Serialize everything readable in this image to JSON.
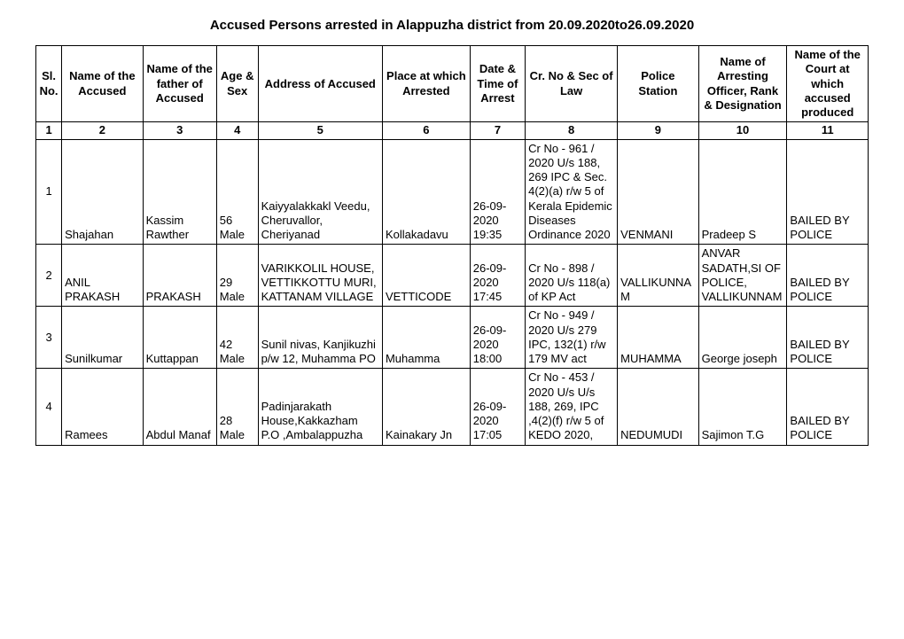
{
  "title": "Accused Persons arrested in   Alappuzha  district from   20.09.2020to26.09.2020",
  "headers": {
    "sl": "Sl. No.",
    "name": "Name of the Accused",
    "father": "Name of the father of Accused",
    "age": "Age & Sex",
    "addr": "Address of Accused",
    "place": "Place at which Arrested",
    "date": "Date & Time of Arrest",
    "cr": "Cr. No & Sec of Law",
    "police": "Police Station",
    "officer": "Name of Arresting Officer, Rank & Designation",
    "court": "Name of the Court at which accused produced"
  },
  "colnums": [
    "1",
    "2",
    "3",
    "4",
    "5",
    "6",
    "7",
    "8",
    "9",
    "10",
    "11"
  ],
  "rows": [
    {
      "sl": "1",
      "name": "Shajahan",
      "father": "Kassim Rawther",
      "age": "56 Male",
      "addr": "Kaiyyalakkakl Veedu, Cheruvallor, Cheriyanad",
      "place": "Kollakadavu",
      "date": "26-09-2020 19:35",
      "cr": "Cr No - 961 / 2020 U/s 188, 269 IPC & Sec. 4(2)(a) r/w 5 of Kerala Epidemic Diseases Ordinance 2020",
      "police": "VENMANI",
      "officer": "Pradeep S",
      "court": "BAILED BY POLICE"
    },
    {
      "sl": "2",
      "name": "ANIL PRAKASH",
      "father": "PRAKASH",
      "age": "29 Male",
      "addr": "VARIKKOLIL HOUSE, VETTIKKOTTU MURI, KATTANAM VILLAGE",
      "place": "VETTICODE",
      "date": "26-09-2020 17:45",
      "cr": "Cr No - 898 / 2020 U/s 118(a) of KP Act",
      "police": "VALLIKUNNAM",
      "officer": "ANVAR SADATH,SI OF POLICE, VALLIKUNNAM",
      "court": "BAILED BY POLICE"
    },
    {
      "sl": "3",
      "name": "Sunilkumar",
      "father": "Kuttappan",
      "age": "42 Male",
      "addr": "Sunil nivas, Kanjikuzhi p/w 12, Muhamma PO",
      "place": "Muhamma",
      "date": "26-09-2020 18:00",
      "cr": "Cr No - 949 / 2020 U/s 279 IPC, 132(1) r/w 179 MV act",
      "police": "MUHAMMA",
      "officer": "George joseph",
      "court": "BAILED BY POLICE"
    },
    {
      "sl": "4",
      "name": "Ramees",
      "father": "Abdul Manaf",
      "age": "28 Male",
      "addr": "Padinjarakath House,Kakkazham  P.O ,Ambalappuzha",
      "place": "Kainakary Jn",
      "date": "26-09-2020 17:05",
      "cr": "Cr No - 453 / 2020 U/s U/s 188, 269, IPC ,4(2)(f) r/w 5 of KEDO 2020,",
      "police": "NEDUMUDI",
      "officer": "Sajimon T.G",
      "court": "BAILED BY POLICE"
    }
  ]
}
